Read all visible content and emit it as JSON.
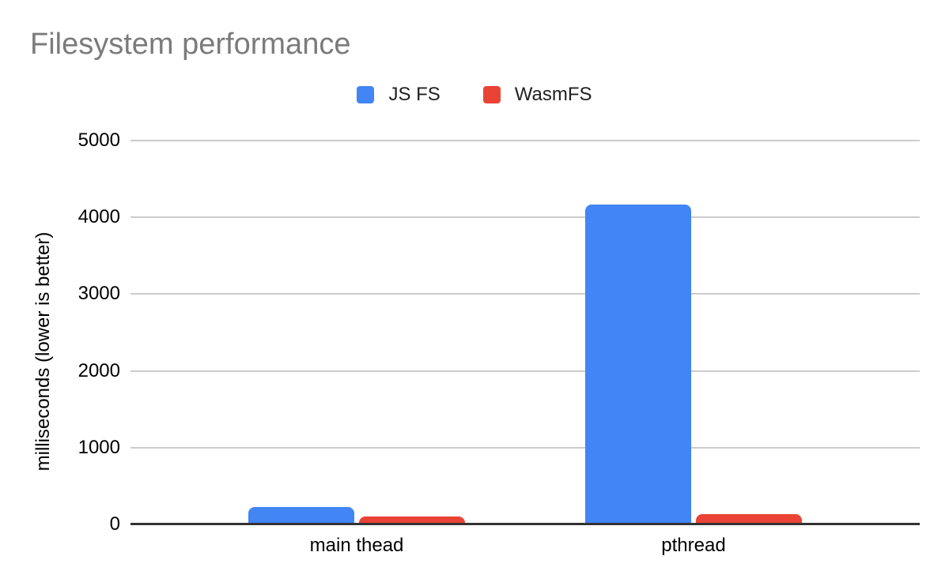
{
  "title": "Filesystem performance",
  "chart_data": {
    "type": "bar",
    "title": "Filesystem performance",
    "categories": [
      "main thead",
      "pthread"
    ],
    "series": [
      {
        "name": "JS FS",
        "color": "#4285F4",
        "values": [
          230,
          4170
        ]
      },
      {
        "name": "WasmFS",
        "color": "#EA4335",
        "values": [
          100,
          130
        ]
      }
    ],
    "xlabel": "",
    "ylabel": "milliseconds (lower is better)",
    "ylim": [
      0,
      5000
    ],
    "yticks": [
      0,
      1000,
      2000,
      3000,
      4000,
      5000
    ],
    "grid": true,
    "legend_position": "top",
    "title_color": "#7b7b7b",
    "gridline_color": "#cccccc",
    "axis_color": "#333333"
  }
}
